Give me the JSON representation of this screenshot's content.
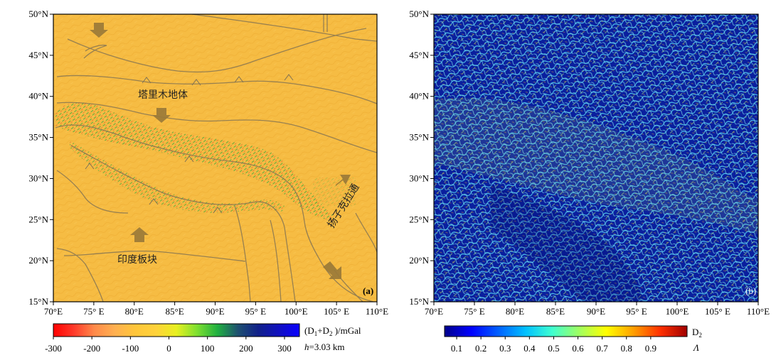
{
  "panel_a": {
    "label": "(a)",
    "lat_labels": [
      "50°N",
      "45°N",
      "40°N",
      "35°N",
      "30°N",
      "25°N",
      "20°N",
      "15°N"
    ],
    "lon_labels": [
      "70°E",
      "75° E",
      "80°E",
      "85°E",
      "90°E",
      "95° E",
      "100°E",
      "105° E",
      "110°E"
    ],
    "place_labels": {
      "tarim": "塔里木地体",
      "yangtze": "扬子克拉通",
      "india": "印度板块"
    },
    "colorbar": {
      "unit": "(D1+D2 )/mGal",
      "unit_parts": {
        "open": "(D",
        "sub1": "1",
        "plus": "+D",
        "sub2": "2",
        "close": " )/mGal"
      },
      "height_note": "h=3.03 km",
      "height_parts": {
        "var": "h",
        "rest": "=3.03 km"
      },
      "ticks": [
        "-300",
        "-200",
        "-100",
        "0",
        "100",
        "200",
        "300"
      ],
      "colors": [
        "#ff0000",
        "#ff3a2a",
        "#ff8a4a",
        "#ffb050",
        "#ffc63a",
        "#ffd23a",
        "#e8f020",
        "#7ee030",
        "#20b040",
        "#1e5070",
        "#10208a",
        "#1010c0",
        "#0a00ff"
      ]
    }
  },
  "panel_b": {
    "label": "(b)",
    "lat_labels": [
      "50°N",
      "45°N",
      "40°N",
      "35°N",
      "30°N",
      "25°N",
      "20°N",
      "15°N"
    ],
    "lon_labels": [
      "70°E",
      "75° E",
      "80°E",
      "85°E",
      "90°E",
      "95° E",
      "100°E",
      "105° E",
      "110°E"
    ],
    "colorbar": {
      "title": "D2",
      "title_parts": {
        "main": "D",
        "sub": "2"
      },
      "subtitle": "Λ",
      "ticks": [
        "0.1",
        "0.2",
        "0.3",
        "0.4",
        "0.5",
        "0.6",
        "0.7",
        "0.8",
        "0.9"
      ],
      "colors": [
        "#00008b",
        "#0000ff",
        "#0060ff",
        "#00c0ff",
        "#40ffd0",
        "#a0ff60",
        "#ffff00",
        "#ffa000",
        "#ff3000",
        "#a00000"
      ]
    }
  },
  "colors": {
    "map_yellow": "#f6bc43",
    "map_yellow_dark": "#eba92d",
    "fault": "#807254",
    "arrow": "#9a7a38",
    "map_blue": "#0a1f9e",
    "texture_cyan": "#58c8e8"
  }
}
